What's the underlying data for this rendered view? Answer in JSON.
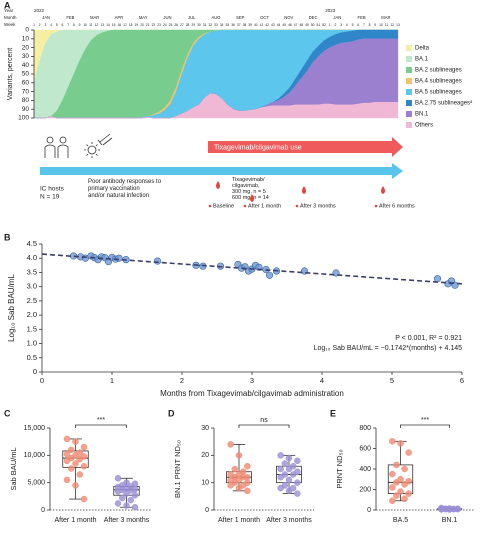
{
  "chart_data": [
    {
      "type": "area",
      "panel_label": "A",
      "ylabel": "Variants, percent",
      "y_inverted": true,
      "x_header": {
        "row_labels": [
          "Year",
          "Month",
          "Week"
        ],
        "years": [
          "2022",
          "2023"
        ],
        "months": [
          "JAN",
          "FEB",
          "MAR",
          "APR",
          "MAY",
          "JUN",
          "JUL",
          "AUG",
          "SEP",
          "OCT",
          "NOV",
          "DEC",
          "JAN",
          "FEB",
          "MAR"
        ]
      },
      "categories": [
        "1",
        "2",
        "3",
        "4",
        "5",
        "6",
        "7",
        "8",
        "9",
        "10",
        "11",
        "12",
        "13",
        "14",
        "15",
        "16",
        "17",
        "18",
        "19",
        "20",
        "21",
        "22",
        "23",
        "24",
        "25",
        "26",
        "27",
        "28",
        "29",
        "30",
        "31",
        "32",
        "33",
        "34",
        "35",
        "36",
        "37",
        "38",
        "39",
        "40",
        "41",
        "42",
        "43",
        "44",
        "45",
        "46",
        "47",
        "48",
        "49",
        "50",
        "51",
        "52",
        "1",
        "2",
        "3",
        "4",
        "5",
        "6",
        "7",
        "8",
        "9",
        "10",
        "11",
        "12",
        "13"
      ],
      "ylim": [
        0,
        100
      ],
      "yticks": [
        0,
        10,
        20,
        30,
        40,
        50,
        60,
        70,
        80,
        90,
        100
      ],
      "series": [
        {
          "name": "Delta",
          "color": "#f6efa2",
          "values": [
            60,
            35,
            15,
            5,
            2,
            0,
            0,
            0,
            0,
            0,
            0,
            0,
            0,
            0,
            0,
            0,
            0,
            0,
            0,
            0,
            0,
            0,
            0,
            0,
            0,
            0,
            0,
            0,
            0,
            0,
            0,
            0,
            0,
            0,
            0,
            0,
            0,
            0,
            0,
            0,
            0,
            0,
            0,
            0,
            0,
            0,
            0,
            0,
            0,
            0,
            0,
            0,
            0,
            0,
            0,
            0,
            0,
            0,
            0,
            0,
            0,
            0,
            0,
            0,
            0
          ]
        },
        {
          "name": "BA.1",
          "color": "#bfe8cc",
          "values": [
            40,
            65,
            85,
            93,
            90,
            80,
            65,
            50,
            35,
            22,
            12,
            6,
            3,
            1,
            0,
            0,
            0,
            0,
            0,
            0,
            0,
            0,
            0,
            0,
            0,
            0,
            0,
            0,
            0,
            0,
            0,
            0,
            0,
            0,
            0,
            0,
            0,
            0,
            0,
            0,
            0,
            0,
            0,
            0,
            0,
            0,
            0,
            0,
            0,
            0,
            0,
            0,
            0,
            0,
            0,
            0,
            0,
            0,
            0,
            0,
            0,
            0,
            0,
            0,
            0
          ]
        },
        {
          "name": "BA.2 sublineages",
          "color": "#78cd8e",
          "values": [
            0,
            0,
            0,
            0,
            8,
            20,
            35,
            50,
            65,
            78,
            88,
            94,
            97,
            99,
            100,
            100,
            100,
            100,
            100,
            99,
            98,
            96,
            93,
            88,
            80,
            65,
            45,
            28,
            15,
            8,
            4,
            2,
            1,
            0,
            0,
            0,
            0,
            0,
            0,
            0,
            0,
            0,
            0,
            0,
            0,
            0,
            0,
            0,
            0,
            0,
            0,
            0,
            0,
            0,
            0,
            0,
            0,
            0,
            0,
            0,
            0,
            0,
            0,
            0,
            0
          ]
        },
        {
          "name": "BA.4 sublineages",
          "color": "#f3c36a",
          "values": [
            0,
            0,
            0,
            0,
            0,
            0,
            0,
            0,
            0,
            0,
            0,
            0,
            0,
            0,
            0,
            0,
            0,
            0,
            0,
            0,
            0,
            1,
            2,
            3,
            4,
            5,
            5,
            4,
            3,
            2,
            1,
            0,
            0,
            0,
            0,
            0,
            0,
            0,
            0,
            0,
            0,
            0,
            0,
            0,
            0,
            0,
            0,
            0,
            0,
            0,
            0,
            0,
            0,
            0,
            0,
            0,
            0,
            0,
            0,
            0,
            0,
            0,
            0,
            0,
            0
          ]
        },
        {
          "name": "BA.5 sublineages",
          "color": "#5cc6ec",
          "values": [
            0,
            0,
            0,
            0,
            0,
            0,
            0,
            0,
            0,
            0,
            0,
            0,
            0,
            0,
            0,
            0,
            0,
            0,
            0,
            1,
            1,
            3,
            5,
            9,
            16,
            28,
            45,
            60,
            70,
            75,
            72,
            70,
            72,
            78,
            85,
            90,
            92,
            92,
            91,
            90,
            88,
            85,
            82,
            78,
            72,
            65,
            55,
            45,
            35,
            25,
            18,
            12,
            8,
            5,
            3,
            2,
            1,
            0,
            0,
            0,
            0,
            0,
            0,
            0,
            0
          ]
        },
        {
          "name": "BA.2.75 sublineagesᵃ",
          "color": "#2f86c8",
          "values": [
            0,
            0,
            0,
            0,
            0,
            0,
            0,
            0,
            0,
            0,
            0,
            0,
            0,
            0,
            0,
            0,
            0,
            0,
            0,
            0,
            0,
            0,
            0,
            0,
            0,
            0,
            0,
            0,
            0,
            0,
            0,
            0,
            0,
            0,
            0,
            0,
            0,
            0,
            0,
            0,
            0,
            0,
            0,
            2,
            4,
            6,
            8,
            10,
            12,
            12,
            12,
            12,
            12,
            12,
            12,
            12,
            12,
            11,
            10,
            10,
            10,
            10,
            10,
            10,
            10
          ]
        },
        {
          "name": "BN.1",
          "color": "#9b80cf",
          "values": [
            0,
            0,
            0,
            0,
            0,
            0,
            0,
            0,
            0,
            0,
            0,
            0,
            0,
            0,
            0,
            0,
            0,
            0,
            0,
            0,
            0,
            0,
            0,
            0,
            0,
            0,
            0,
            0,
            0,
            0,
            0,
            0,
            0,
            0,
            0,
            0,
            0,
            0,
            0,
            0,
            0,
            2,
            4,
            6,
            10,
            15,
            22,
            30,
            38,
            48,
            55,
            60,
            64,
            68,
            70,
            71,
            72,
            73,
            73,
            73,
            72,
            72,
            72,
            72,
            72
          ]
        },
        {
          "name": "Others",
          "color": "#f1b8d6",
          "values": [
            0,
            0,
            0,
            2,
            0,
            0,
            0,
            0,
            0,
            0,
            0,
            0,
            0,
            0,
            0,
            0,
            0,
            0,
            0,
            0,
            1,
            0,
            0,
            0,
            0,
            2,
            5,
            8,
            12,
            15,
            23,
            28,
            27,
            22,
            15,
            10,
            8,
            8,
            9,
            10,
            12,
            13,
            14,
            14,
            14,
            14,
            15,
            15,
            15,
            15,
            15,
            16,
            16,
            15,
            15,
            15,
            15,
            16,
            17,
            17,
            18,
            18,
            18,
            18,
            18
          ]
        }
      ]
    },
    {
      "type": "scatter",
      "panel_label": "B",
      "xlabel": "Months from Tixagevimab/cilgavimab administration",
      "ylabel": "Log₁₀ Sab BAU/mL",
      "color": "#6f97d1",
      "x": [
        0.45,
        0.55,
        0.62,
        0.7,
        0.75,
        0.8,
        0.85,
        0.9,
        0.95,
        1.0,
        1.05,
        1.1,
        1.2,
        1.65,
        2.2,
        2.3,
        2.55,
        2.8,
        2.85,
        2.9,
        2.95,
        3.0,
        3.05,
        3.1,
        3.2,
        3.25,
        3.35,
        3.75,
        4.2,
        5.65,
        5.8,
        5.85,
        5.9
      ],
      "y": [
        4.08,
        4.05,
        4.0,
        4.08,
        4.02,
        3.95,
        4.05,
        4.02,
        3.88,
        4.03,
        3.97,
        4.0,
        3.95,
        3.9,
        3.75,
        3.72,
        3.72,
        3.78,
        3.65,
        3.7,
        3.55,
        3.62,
        3.75,
        3.68,
        3.6,
        3.4,
        3.55,
        3.55,
        3.48,
        3.28,
        3.1,
        3.2,
        3.05
      ],
      "xlim": [
        0,
        6
      ],
      "xticks": [
        0,
        1,
        2,
        3,
        4,
        5,
        6
      ],
      "ylim": [
        0,
        4.5
      ],
      "yticks": [
        0,
        0.5,
        {
          "value": 1,
          "label": "1.0"
        },
        1.5,
        {
          "value": 2,
          "label": "2.0"
        },
        2.5,
        {
          "value": 3,
          "label": "3.0"
        },
        3.5,
        {
          "value": 4,
          "label": "4.0"
        },
        4.5
      ],
      "fit": {
        "slope": -0.1742,
        "intercept": 4.145
      },
      "annotations": [
        "P < 0.001, R² = 0.921",
        "Log₁₀ Sab BAU/mL = −0.1742*(months) + 4.145"
      ]
    },
    {
      "type": "box",
      "panel_label": "C",
      "ylabel": "Sab BAU/mL",
      "significance": "***",
      "ylim": [
        0,
        15000
      ],
      "yticks": [
        0,
        {
          "value": 5000,
          "label": "5,000"
        },
        {
          "value": 10000,
          "label": "10,000"
        },
        {
          "value": 15000,
          "label": "15,000"
        }
      ],
      "categories": [
        "After 1 month",
        "After 3 months"
      ],
      "groups": [
        {
          "color": "#f08a72",
          "whisker_low": 2000,
          "q1": 7800,
          "median": 9500,
          "q3": 10800,
          "whisker_high": 13000,
          "points": [
            13000,
            12500,
            11500,
            11000,
            10500,
            10200,
            10000,
            9800,
            9500,
            9300,
            9000,
            8500,
            8000,
            7600,
            6500,
            5500,
            4500,
            2000
          ]
        },
        {
          "color": "#9b8fd6",
          "whisker_low": 500,
          "q1": 2700,
          "median": 3700,
          "q3": 4300,
          "whisker_high": 5800,
          "points": [
            5800,
            5000,
            4800,
            4500,
            4300,
            4200,
            4000,
            3800,
            3700,
            3600,
            3400,
            3000,
            2700,
            2200,
            1800,
            1200,
            800,
            500
          ]
        }
      ]
    },
    {
      "type": "box",
      "panel_label": "D",
      "ylabel": "BN.1 PRNT ND₅₀",
      "significance": "ns",
      "ylim": [
        0,
        30
      ],
      "yticks": [
        0,
        10,
        20,
        30
      ],
      "categories": [
        "After 1 month",
        "After 3 months"
      ],
      "groups": [
        {
          "color": "#f08a72",
          "whisker_low": 7,
          "q1": 10,
          "median": 12,
          "q3": 14,
          "whisker_high": 24,
          "points": [
            24,
            20,
            16,
            15,
            14,
            13,
            13,
            12,
            12,
            12,
            11,
            11,
            10,
            10,
            9,
            9,
            8,
            7
          ]
        },
        {
          "color": "#9b8fd6",
          "whisker_low": 6,
          "q1": 10,
          "median": 13,
          "q3": 16,
          "whisker_high": 20,
          "points": [
            20,
            19,
            18,
            17,
            16,
            15,
            15,
            14,
            13,
            13,
            12,
            11,
            10,
            9,
            8,
            8,
            7,
            6
          ]
        }
      ]
    },
    {
      "type": "box",
      "panel_label": "E",
      "ylabel": "PRNT ND₅₀",
      "significance": "***",
      "ylim": [
        0,
        800
      ],
      "yticks": [
        0,
        200,
        400,
        600,
        800
      ],
      "categories": [
        "BA.5",
        "BN.1"
      ],
      "groups": [
        {
          "color": "#f08a72",
          "whisker_low": 90,
          "q1": 160,
          "median": 270,
          "q3": 440,
          "whisker_high": 670,
          "points": [
            670,
            650,
            560,
            440,
            400,
            350,
            300,
            280,
            270,
            250,
            220,
            180,
            160,
            140,
            110,
            90
          ]
        },
        {
          "color": "#9b8fd6",
          "whisker_low": 5,
          "q1": 8,
          "median": 10,
          "q3": 12,
          "whisker_high": 20,
          "points": [
            20,
            15,
            12,
            12,
            10,
            10,
            10,
            8,
            8,
            8,
            6,
            5
          ]
        }
      ]
    }
  ],
  "timeline": {
    "drug_use": "Tixagevimab/cilgavimab use",
    "host": "IC hosts",
    "n": "N = 19",
    "background_lines": [
      "Poor antibody responses to",
      "primary vaccination",
      "and/or natural infection"
    ],
    "dosing_lines": [
      "Tixagevimab/",
      "cilgavimab,",
      "300 mg, n = 5",
      "600 mg, n = 14"
    ],
    "timepoints": [
      "Baseline",
      "After 1 month",
      "After 3 months",
      "After 6 months"
    ]
  }
}
